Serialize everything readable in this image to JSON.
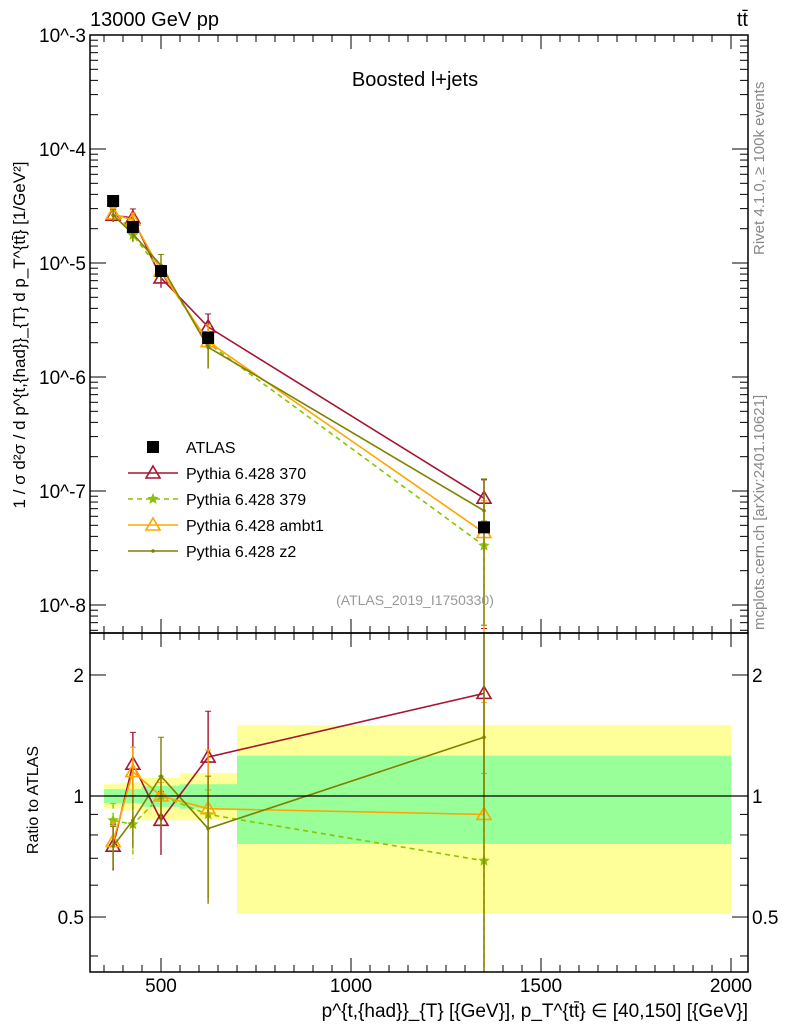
{
  "header": {
    "energy_label": "13000 GeV pp",
    "process_label": "tt̄"
  },
  "side_labels": {
    "rivet": "Rivet 4.1.0, ≥ 100k events",
    "mcplots": "mcplots.cern.ch [arXiv:2401.10621]"
  },
  "chart_data": [
    {
      "type": "line",
      "title": "Boosted l+jets",
      "watermark": "(ATLAS_2019_I1750330)",
      "ylabel": "1 / σ d²σ / d p^{t,{had}}_{T} d p_T^{tt̄} [1/GeV²]",
      "xlabel": "p^{t,{had}}_{T} [{GeV}], p_T^{tt̄} ∈ [40,150] [{GeV}]",
      "yscale": "log",
      "ylim": [
        5.6e-09,
        0.001
      ],
      "xlim": [
        313,
        2045
      ],
      "ytick_labels": [
        "10^-8",
        "10^-7",
        "10^-6",
        "10^-5",
        "10^-4",
        "10^-3"
      ],
      "ytick_values": [
        1e-08,
        1e-07,
        1e-06,
        1e-05,
        0.0001,
        0.001
      ],
      "legend_position": "lower-left",
      "x": [
        374,
        426,
        500,
        624,
        1350
      ],
      "bin_edges": [
        350,
        400,
        450,
        550,
        700,
        2000
      ],
      "data": {
        "name": "ATLAS",
        "values": [
          3.5e-05,
          2.07e-05,
          8.5e-06,
          2.2e-06,
          4.8e-08
        ],
        "color": "#000000"
      },
      "series": [
        {
          "name": "Pythia 6.428 370",
          "color": "#a51530",
          "marker": "triangle-open",
          "dashed": false,
          "ratio": [
            0.75,
            1.2,
            0.87,
            1.25,
            1.8
          ],
          "rel_err": [
            0.13,
            0.2,
            0.18,
            0.3,
            0.45
          ]
        },
        {
          "name": "Pythia 6.428 379",
          "color": "#88c400",
          "marker": "star",
          "dashed": true,
          "ratio": [
            0.87,
            0.85,
            1.0,
            0.9,
            0.69
          ],
          "rel_err": [
            0.1,
            0.18,
            0.12,
            0.15,
            0.65
          ]
        },
        {
          "name": "Pythia 6.428 ambt1",
          "color": "#ffa500",
          "marker": "triangle-open",
          "dashed": false,
          "ratio": [
            0.77,
            1.15,
            1.0,
            0.93,
            0.9
          ],
          "rel_err": [
            0.12,
            0.15,
            0.08,
            0.4,
            0.9
          ]
        },
        {
          "name": "Pythia 6.428 z2",
          "color": "#808000",
          "marker": "dot",
          "dashed": false,
          "ratio": [
            0.75,
            0.87,
            1.12,
            0.83,
            1.4
          ],
          "rel_err": [
            0.12,
            0.15,
            0.25,
            0.35,
            0.9
          ]
        }
      ]
    },
    {
      "type": "line",
      "ylabel": "Ratio to ATLAS",
      "yscale": "log",
      "ylim": [
        0.34,
        2.54
      ],
      "ytick_labels": [
        "0.5",
        "1",
        "2"
      ],
      "ytick_values": [
        0.5,
        1,
        2
      ],
      "xtick_labels": [
        "500",
        "1000",
        "1500",
        "2000"
      ],
      "xtick_values": [
        500,
        1000,
        1500,
        2000
      ],
      "band_stat": {
        "color": "#99ff99",
        "low": [
          0.96,
          0.96,
          0.94,
          0.93,
          0.76
        ],
        "high": [
          1.04,
          1.04,
          1.06,
          1.07,
          1.26
        ]
      },
      "band_total": {
        "color": "#ffff99",
        "low": [
          0.93,
          0.92,
          0.87,
          0.87,
          0.51
        ],
        "high": [
          1.07,
          1.08,
          1.11,
          1.14,
          1.5
        ]
      }
    }
  ]
}
